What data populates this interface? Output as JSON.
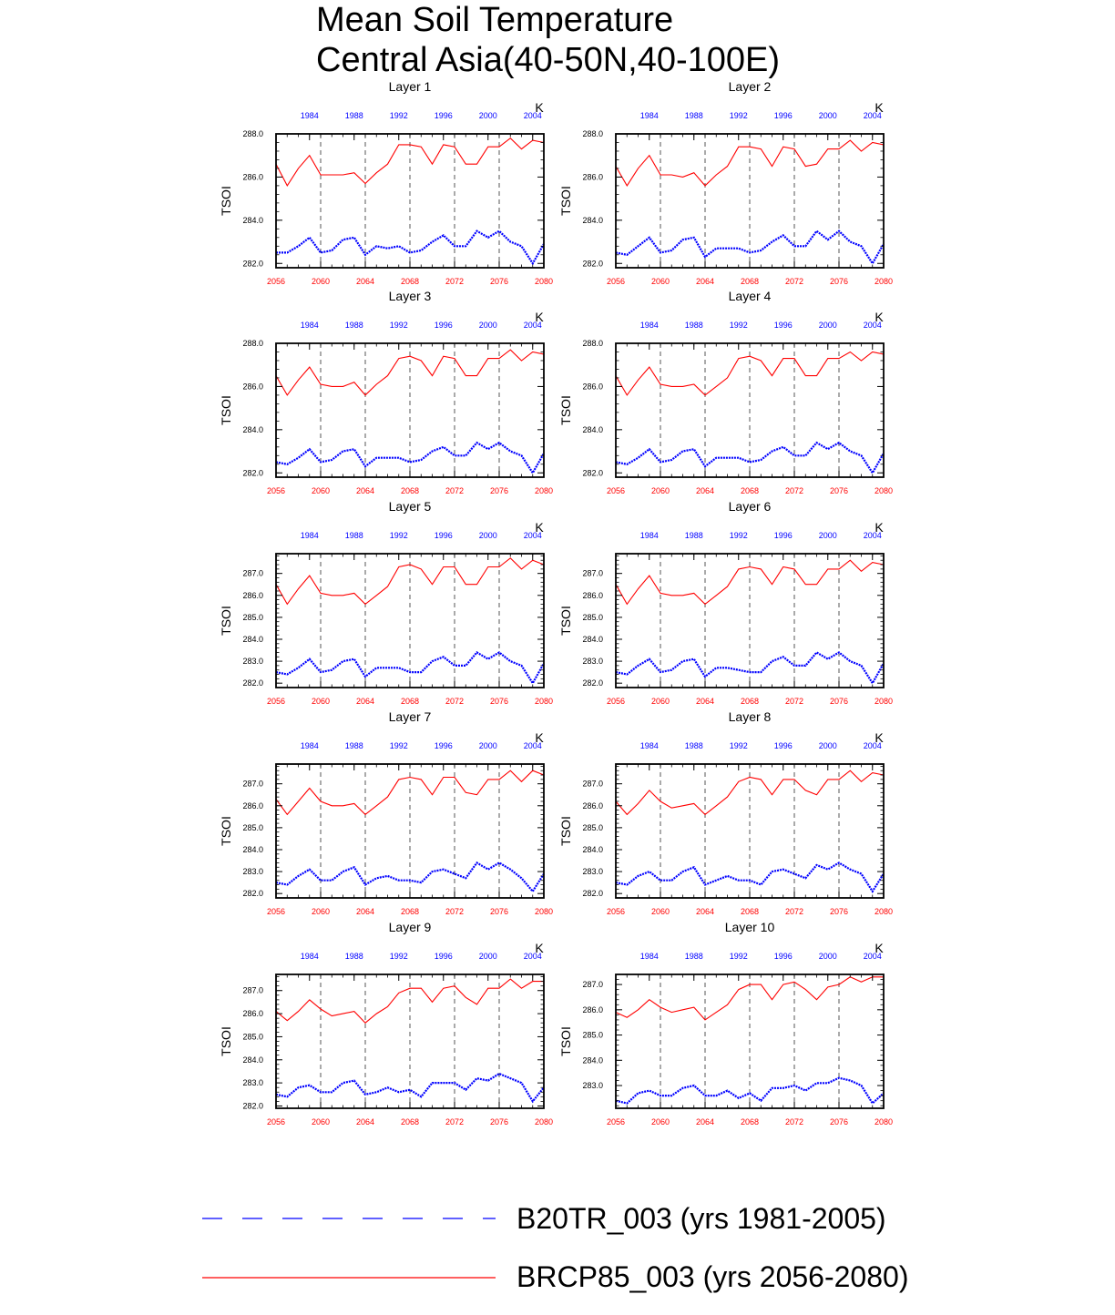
{
  "title": {
    "line1": "Mean Soil Temperature",
    "line2": "Central Asia(40-50N,40-100E)"
  },
  "legend": [
    {
      "name": "B20TR_003 (yrs 1981-2005)",
      "color": "#0000ff",
      "style": "dashed"
    },
    {
      "name": "BRCP85_003 (yrs 2056-2080)",
      "color": "#ff0000",
      "style": "solid"
    }
  ],
  "chart_data": {
    "type": "line",
    "ylabel": "TSOI",
    "units_label": "K",
    "x_bottom_ticks": [
      "2056",
      "2060",
      "2064",
      "2068",
      "2072",
      "2076",
      "2080"
    ],
    "x_top_ticks": [
      "1984",
      "1988",
      "1992",
      "1996",
      "2000",
      "2004"
    ],
    "colors": {
      "future": "#ff0000",
      "historical": "#0000ff",
      "bottom_ticks": "#ff0000",
      "top_ticks": "#0000ff"
    },
    "panels": [
      {
        "title": "Layer 1",
        "ylim": [
          281.8,
          288.0
        ],
        "yticks": [
          282.0,
          284.0,
          286.0,
          288.0
        ],
        "future": [
          286.6,
          285.6,
          286.4,
          287.0,
          286.1,
          286.1,
          286.1,
          286.2,
          285.7,
          286.2,
          286.6,
          287.5,
          287.5,
          287.4,
          286.6,
          287.5,
          287.4,
          286.6,
          286.6,
          287.4,
          287.4,
          287.8,
          287.3,
          287.7,
          287.6
        ],
        "historical": [
          282.5,
          282.5,
          282.8,
          283.2,
          282.5,
          282.6,
          283.1,
          283.2,
          282.4,
          282.8,
          282.7,
          282.8,
          282.5,
          282.6,
          283.0,
          283.3,
          282.8,
          282.8,
          283.5,
          283.2,
          283.5,
          283.0,
          282.8,
          282.0,
          282.9
        ]
      },
      {
        "title": "Layer 2",
        "ylim": [
          281.8,
          288.0
        ],
        "yticks": [
          282.0,
          284.0,
          286.0,
          288.0
        ],
        "future": [
          286.5,
          285.6,
          286.4,
          287.0,
          286.1,
          286.1,
          286.0,
          286.2,
          285.6,
          286.1,
          286.5,
          287.4,
          287.4,
          287.3,
          286.5,
          287.4,
          287.3,
          286.5,
          286.6,
          287.3,
          287.3,
          287.7,
          287.2,
          287.6,
          287.5
        ],
        "historical": [
          282.5,
          282.4,
          282.8,
          283.2,
          282.5,
          282.6,
          283.1,
          283.2,
          282.3,
          282.7,
          282.7,
          282.7,
          282.5,
          282.6,
          283.0,
          283.3,
          282.8,
          282.8,
          283.5,
          283.1,
          283.5,
          283.0,
          282.8,
          282.0,
          282.9
        ]
      },
      {
        "title": "Layer 3",
        "ylim": [
          281.8,
          288.0
        ],
        "yticks": [
          282.0,
          284.0,
          286.0,
          288.0
        ],
        "future": [
          286.5,
          285.6,
          286.3,
          286.9,
          286.1,
          286.0,
          286.0,
          286.2,
          285.6,
          286.1,
          286.5,
          287.3,
          287.4,
          287.2,
          286.5,
          287.4,
          287.3,
          286.5,
          286.5,
          287.3,
          287.3,
          287.7,
          287.2,
          287.6,
          287.5
        ],
        "historical": [
          282.5,
          282.4,
          282.7,
          283.1,
          282.5,
          282.6,
          283.0,
          283.1,
          282.3,
          282.7,
          282.7,
          282.7,
          282.5,
          282.6,
          283.0,
          283.2,
          282.8,
          282.8,
          283.4,
          283.1,
          283.4,
          283.0,
          282.8,
          282.0,
          282.9
        ]
      },
      {
        "title": "Layer 4",
        "ylim": [
          281.8,
          288.0
        ],
        "yticks": [
          282.0,
          284.0,
          286.0,
          288.0
        ],
        "future": [
          286.5,
          285.6,
          286.3,
          286.9,
          286.1,
          286.0,
          286.0,
          286.1,
          285.6,
          286.0,
          286.4,
          287.3,
          287.4,
          287.2,
          286.5,
          287.3,
          287.3,
          286.5,
          286.5,
          287.3,
          287.3,
          287.6,
          287.2,
          287.6,
          287.5
        ],
        "historical": [
          282.5,
          282.4,
          282.7,
          283.1,
          282.5,
          282.6,
          283.0,
          283.1,
          282.3,
          282.7,
          282.7,
          282.7,
          282.5,
          282.6,
          283.0,
          283.2,
          282.8,
          282.8,
          283.4,
          283.1,
          283.4,
          283.0,
          282.8,
          282.0,
          282.9
        ]
      },
      {
        "title": "Layer 5",
        "ylim": [
          281.8,
          287.9
        ],
        "yticks": [
          282.0,
          283.0,
          284.0,
          285.0,
          286.0,
          287.0
        ],
        "future": [
          286.5,
          285.6,
          286.3,
          286.9,
          286.1,
          286.0,
          286.0,
          286.1,
          285.6,
          286.0,
          286.4,
          287.3,
          287.4,
          287.2,
          286.5,
          287.3,
          287.3,
          286.5,
          286.5,
          287.3,
          287.3,
          287.7,
          287.2,
          287.6,
          287.4
        ],
        "historical": [
          282.5,
          282.4,
          282.7,
          283.1,
          282.5,
          282.6,
          283.0,
          283.1,
          282.3,
          282.7,
          282.7,
          282.7,
          282.5,
          282.5,
          283.0,
          283.2,
          282.8,
          282.8,
          283.4,
          283.1,
          283.4,
          283.0,
          282.8,
          282.0,
          282.9
        ]
      },
      {
        "title": "Layer 6",
        "ylim": [
          281.8,
          287.9
        ],
        "yticks": [
          282.0,
          283.0,
          284.0,
          285.0,
          286.0,
          287.0
        ],
        "future": [
          286.5,
          285.6,
          286.3,
          286.9,
          286.1,
          286.0,
          286.0,
          286.1,
          285.6,
          286.0,
          286.4,
          287.2,
          287.3,
          287.2,
          286.5,
          287.3,
          287.2,
          286.5,
          286.5,
          287.2,
          287.2,
          287.6,
          287.1,
          287.5,
          287.4
        ],
        "historical": [
          282.5,
          282.4,
          282.8,
          283.1,
          282.5,
          282.6,
          283.0,
          283.1,
          282.3,
          282.7,
          282.7,
          282.6,
          282.5,
          282.5,
          283.0,
          283.2,
          282.8,
          282.8,
          283.4,
          283.1,
          283.4,
          283.0,
          282.8,
          282.0,
          282.9
        ]
      },
      {
        "title": "Layer 7",
        "ylim": [
          281.8,
          287.9
        ],
        "yticks": [
          282.0,
          283.0,
          284.0,
          285.0,
          286.0,
          287.0
        ],
        "future": [
          286.3,
          285.6,
          286.2,
          286.8,
          286.2,
          286.0,
          286.0,
          286.1,
          285.6,
          286.0,
          286.4,
          287.2,
          287.3,
          287.2,
          286.5,
          287.3,
          287.3,
          286.6,
          286.5,
          287.2,
          287.2,
          287.6,
          287.1,
          287.6,
          287.4
        ],
        "historical": [
          282.5,
          282.4,
          282.8,
          283.1,
          282.6,
          282.6,
          283.0,
          283.2,
          282.4,
          282.7,
          282.8,
          282.6,
          282.6,
          282.5,
          283.0,
          283.1,
          282.9,
          282.7,
          283.4,
          283.1,
          283.4,
          283.1,
          282.7,
          282.1,
          282.9
        ]
      },
      {
        "title": "Layer 8",
        "ylim": [
          281.8,
          287.9
        ],
        "yticks": [
          282.0,
          283.0,
          284.0,
          285.0,
          286.0,
          287.0
        ],
        "future": [
          286.2,
          285.6,
          286.1,
          286.7,
          286.2,
          285.9,
          286.0,
          286.1,
          285.6,
          286.0,
          286.4,
          287.1,
          287.3,
          287.2,
          286.5,
          287.2,
          287.2,
          286.7,
          286.5,
          287.2,
          287.2,
          287.6,
          287.1,
          287.5,
          287.4
        ],
        "historical": [
          282.5,
          282.4,
          282.8,
          283.0,
          282.6,
          282.6,
          283.0,
          283.2,
          282.4,
          282.6,
          282.8,
          282.6,
          282.6,
          282.4,
          283.0,
          283.1,
          282.9,
          282.7,
          283.3,
          283.1,
          283.4,
          283.1,
          282.9,
          282.1,
          282.9
        ]
      },
      {
        "title": "Layer 9",
        "ylim": [
          281.9,
          287.7
        ],
        "yticks": [
          282.0,
          283.0,
          284.0,
          285.0,
          286.0,
          287.0
        ],
        "future": [
          286.1,
          285.7,
          286.1,
          286.6,
          286.2,
          285.9,
          286.0,
          286.1,
          285.6,
          286.0,
          286.3,
          286.9,
          287.1,
          287.1,
          286.5,
          287.1,
          287.2,
          286.7,
          286.4,
          287.1,
          287.1,
          287.5,
          287.1,
          287.4,
          287.4
        ],
        "historical": [
          282.5,
          282.4,
          282.8,
          282.9,
          282.6,
          282.6,
          283.0,
          283.1,
          282.5,
          282.6,
          282.8,
          282.6,
          282.7,
          282.4,
          283.0,
          283.0,
          283.0,
          282.7,
          283.2,
          283.1,
          283.4,
          283.2,
          283.0,
          282.2,
          282.8
        ]
      },
      {
        "title": "Layer 10",
        "ylim": [
          282.1,
          287.4
        ],
        "yticks": [
          283.0,
          284.0,
          285.0,
          286.0,
          287.0
        ],
        "future": [
          285.9,
          285.7,
          286.0,
          286.4,
          286.1,
          285.9,
          286.0,
          286.1,
          285.6,
          285.9,
          286.2,
          286.8,
          287.0,
          287.0,
          286.4,
          287.0,
          287.1,
          286.8,
          286.4,
          286.9,
          287.0,
          287.3,
          287.1,
          287.3,
          287.3
        ],
        "historical": [
          282.4,
          282.3,
          282.7,
          282.8,
          282.6,
          282.6,
          282.9,
          283.0,
          282.6,
          282.6,
          282.8,
          282.5,
          282.7,
          282.4,
          282.9,
          282.9,
          283.0,
          282.8,
          283.1,
          283.1,
          283.3,
          283.2,
          283.0,
          282.3,
          282.7
        ]
      }
    ]
  }
}
